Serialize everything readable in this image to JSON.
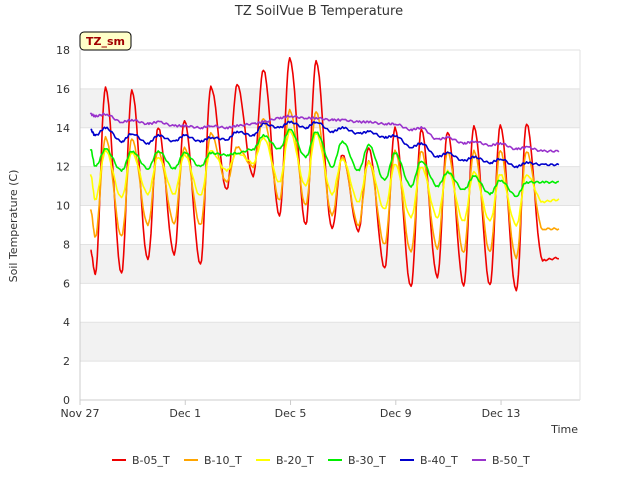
{
  "chart_data": {
    "type": "line",
    "title": "TZ SoilVue B Temperature",
    "xlabel": "Time",
    "ylabel": "Soil Temperature (C)",
    "badge": "TZ_sm",
    "ylim": [
      0,
      18
    ],
    "y_ticks": [
      0,
      2,
      4,
      6,
      8,
      10,
      12,
      14,
      16,
      18
    ],
    "xlim": [
      "2023-11-27",
      "2023-12-16"
    ],
    "x_ticks": [
      {
        "date": "2023-11-27",
        "label": "Nov 27"
      },
      {
        "date": "2023-12-01",
        "label": "Dec 1"
      },
      {
        "date": "2023-12-05",
        "label": "Dec 5"
      },
      {
        "date": "2023-12-09",
        "label": "Dec 9"
      },
      {
        "date": "2023-12-13",
        "label": "Dec 13"
      }
    ],
    "grid": "horizontal bands",
    "legend_position": "bottom",
    "series": [
      {
        "name": "B-05_T",
        "color": "#ee0000",
        "daily_min": [
          6.5,
          6.5,
          7.2,
          7.5,
          7.0,
          10.8,
          11.5,
          9.5,
          9.0,
          8.8,
          8.7,
          6.8,
          5.8,
          6.3,
          5.9,
          5.9,
          5.6,
          7.2
        ],
        "daily_max": [
          16.1,
          15.9,
          14.0,
          14.4,
          16.1,
          16.2,
          17.0,
          17.6,
          17.4,
          12.6,
          13.0,
          14.0,
          13.9,
          13.8,
          14.1,
          14.1,
          14.2
        ],
        "start": 7.7,
        "end": 7.3
      },
      {
        "name": "B-10_T",
        "color": "#ffa500",
        "daily_min": [
          8.4,
          8.4,
          9.0,
          9.1,
          9.0,
          11.2,
          12.0,
          10.3,
          10.0,
          9.5,
          9.0,
          8.0,
          7.6,
          7.8,
          7.6,
          7.6,
          7.3,
          8.8
        ],
        "daily_max": [
          13.5,
          13.4,
          12.8,
          13.0,
          13.7,
          13.0,
          14.5,
          14.9,
          14.8,
          12.5,
          12.3,
          12.8,
          12.8,
          12.8,
          12.8,
          12.8,
          12.8
        ],
        "start": 9.8,
        "end": 8.8
      },
      {
        "name": "B-20_T",
        "color": "#ffff00",
        "daily_min": [
          10.3,
          10.4,
          10.6,
          10.6,
          10.5,
          11.8,
          12.2,
          11.2,
          11.0,
          10.6,
          10.2,
          9.8,
          9.4,
          9.4,
          9.2,
          9.2,
          9.0,
          10.2
        ],
        "daily_max": [
          12.8,
          12.7,
          12.5,
          12.6,
          12.8,
          12.7,
          13.5,
          13.8,
          13.7,
          12.4,
          12.2,
          12.1,
          12.0,
          11.8,
          11.7,
          11.6,
          11.6
        ],
        "start": 11.6,
        "end": 10.3
      },
      {
        "name": "B-30_T",
        "color": "#00ee00",
        "daily_min": [
          12.0,
          11.8,
          11.9,
          11.9,
          12.0,
          12.6,
          12.9,
          12.9,
          12.5,
          12.0,
          11.8,
          11.3,
          11.0,
          11.0,
          10.8,
          10.6,
          10.5,
          11.2
        ],
        "daily_max": [
          12.9,
          12.8,
          12.8,
          12.7,
          12.7,
          12.7,
          13.6,
          13.9,
          13.8,
          13.3,
          13.1,
          12.7,
          12.3,
          11.7,
          11.5,
          11.3,
          11.2
        ],
        "start": 12.9,
        "end": 11.2
      },
      {
        "name": "B-40_T",
        "color": "#0000cc",
        "daily_min": [
          13.6,
          13.3,
          13.2,
          13.3,
          13.3,
          13.4,
          13.6,
          14.0,
          14.0,
          13.8,
          13.7,
          13.5,
          13.0,
          12.5,
          12.3,
          12.2,
          12.0,
          12.1
        ],
        "daily_max": [
          14.0,
          13.7,
          13.6,
          13.6,
          13.5,
          13.8,
          14.2,
          14.3,
          14.3,
          14.0,
          13.8,
          13.6,
          13.2,
          12.7,
          12.5,
          12.4,
          12.2
        ],
        "start": 13.9,
        "end": 12.1
      },
      {
        "name": "B-50_T",
        "color": "#9933cc",
        "daily_min": [
          14.6,
          14.3,
          14.2,
          14.1,
          14.0,
          14.0,
          14.2,
          14.5,
          14.5,
          14.4,
          14.3,
          14.2,
          13.9,
          13.4,
          13.2,
          13.1,
          12.9,
          12.8
        ],
        "daily_max": [
          14.7,
          14.4,
          14.3,
          14.1,
          14.1,
          14.1,
          14.3,
          14.6,
          14.5,
          14.4,
          14.3,
          14.2,
          14.0,
          13.5,
          13.3,
          13.2,
          13.0
        ],
        "start": 14.7,
        "end": 12.8
      }
    ]
  }
}
